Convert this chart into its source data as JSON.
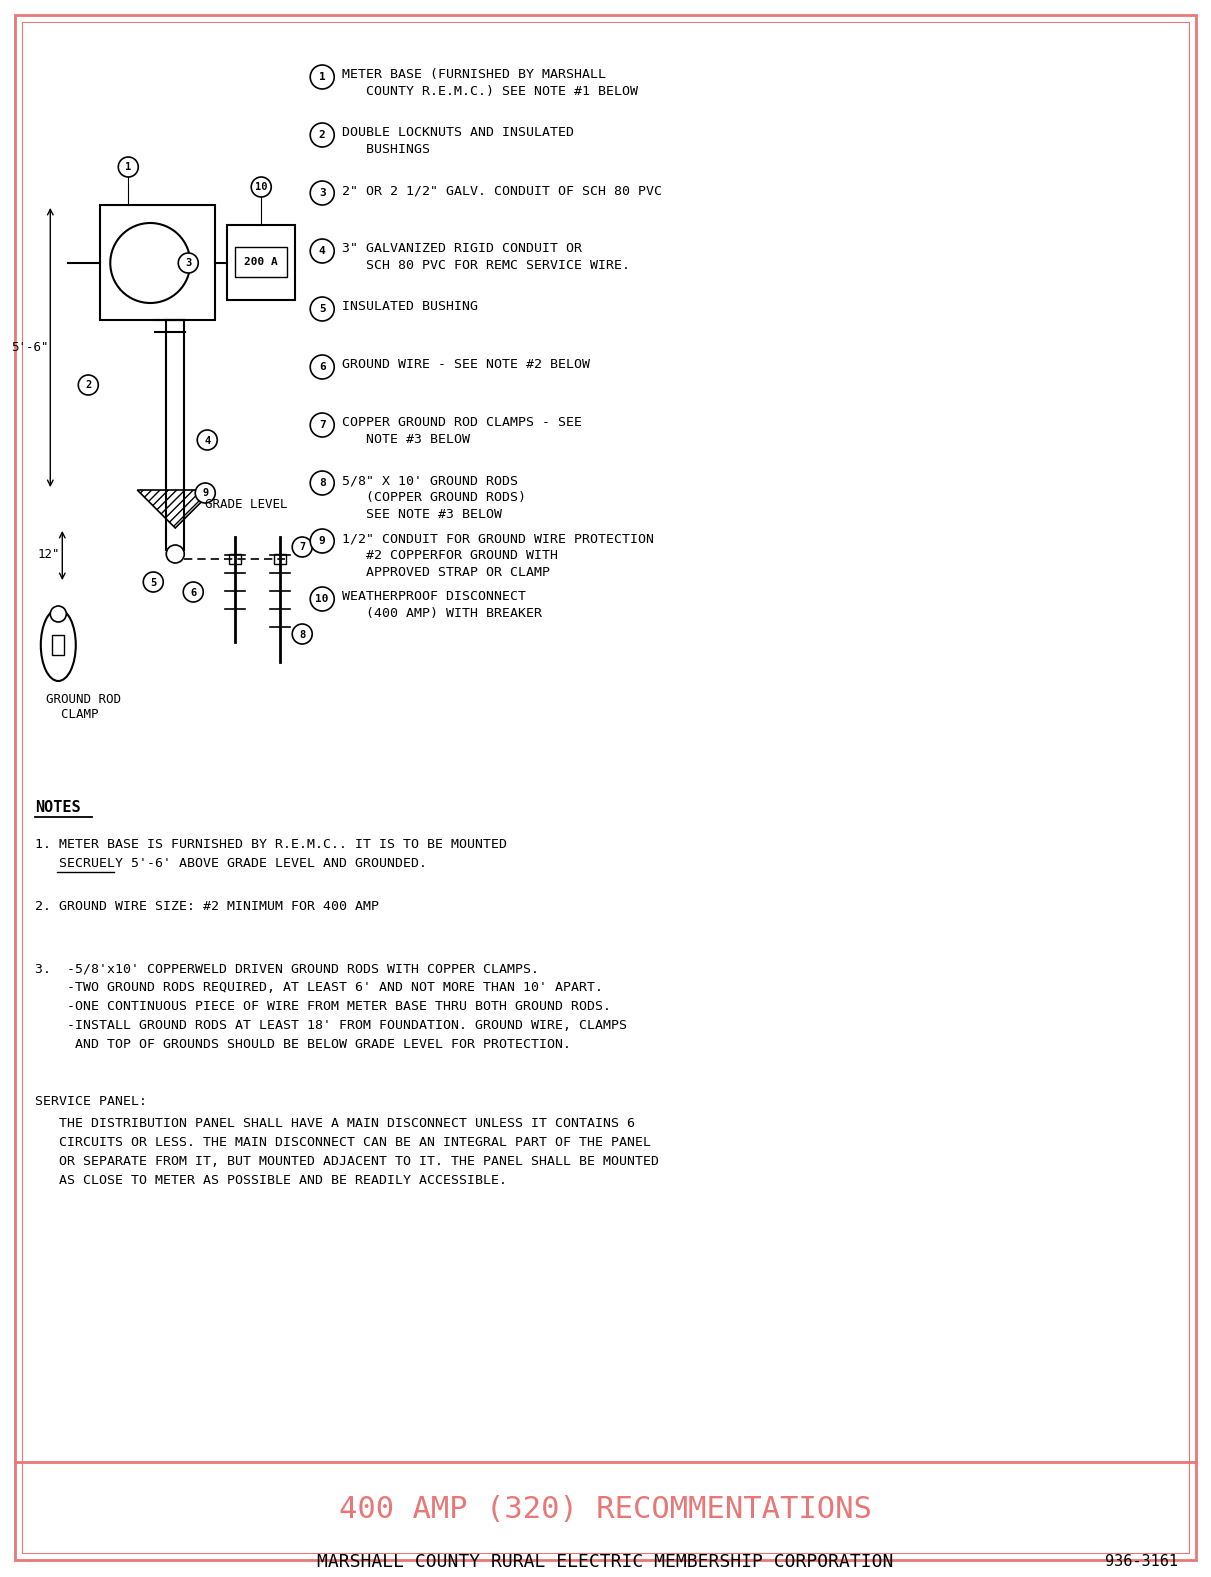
{
  "bg_color": "#ffffff",
  "border_color": "#e87878",
  "title_color": "#e87878",
  "text_color": "#000000",
  "title": "400 AMP (320) RECOMMENTATIONS",
  "subtitle": "MARSHALL COUNTY RURAL ELECTRIC MEMBERSHIP CORPORATION",
  "doc_number": "936-3161",
  "legend_items": [
    {
      "num": "1",
      "text": "METER BASE (FURNISHED BY MARSHALL\n   COUNTY R.E.M.C.) SEE NOTE #1 BELOW"
    },
    {
      "num": "2",
      "text": "DOUBLE LOCKNUTS AND INSULATED\n   BUSHINGS"
    },
    {
      "num": "3",
      "text": "2\" OR 2 1/2\" GALV. CONDUIT OF SCH 80 PVC"
    },
    {
      "num": "4",
      "text": "3\" GALVANIZED RIGID CONDUIT OR\n   SCH 80 PVC FOR REMC SERVICE WIRE."
    },
    {
      "num": "5",
      "text": "INSULATED BUSHING"
    },
    {
      "num": "6",
      "text": "GROUND WIRE - SEE NOTE #2 BELOW"
    },
    {
      "num": "7",
      "text": "COPPER GROUND ROD CLAMPS - SEE\n   NOTE #3 BELOW"
    },
    {
      "num": "8",
      "text": "5/8\" X 10' GROUND RODS\n   (COPPER GROUND RODS)\n   SEE NOTE #3 BELOW"
    },
    {
      "num": "9",
      "text": "1/2\" CONDUIT FOR GROUND WIRE PROTECTION\n   #2 COPPERFOR GROUND WITH\n   APPROVED STRAP OR CLAMP"
    },
    {
      "num": "10",
      "text": "WEATHERPROOF DISCONNECT\n   (400 AMP) WITH BREAKER"
    }
  ],
  "notes_title": "NOTES",
  "note2": "2. GROUND WIRE SIZE: #2 MINIMUM FOR 400 AMP",
  "note3_lines": [
    "3.  -5/8'x10' COPPERWELD DRIVEN GROUND RODS WITH COPPER CLAMPS.",
    "    -TWO GROUND RODS REQUIRED, AT LEAST 6' AND NOT MORE THAN 10' APART.",
    "    -ONE CONTINUOUS PIECE OF WIRE FROM METER BASE THRU BOTH GROUND RODS.",
    "    -INSTALL GROUND RODS AT LEAST 18' FROM FOUNDATION. GROUND WIRE, CLAMPS",
    "     AND TOP OF GROUNDS SHOULD BE BELOW GRADE LEVEL FOR PROTECTION."
  ],
  "service_panel_title": "SERVICE PANEL:",
  "service_panel_lines": [
    "   THE DISTRIBUTION PANEL SHALL HAVE A MAIN DISCONNECT UNLESS IT CONTAINS 6",
    "   CIRCUITS OR LESS. THE MAIN DISCONNECT CAN BE AN INTEGRAL PART OF THE PANEL",
    "   OR SEPARATE FROM IT, BUT MOUNTED ADJACENT TO IT. THE PANEL SHALL BE MOUNTED",
    "   AS CLOSE TO METER AS POSSIBLE AND BE READILY ACCESSIBLE."
  ],
  "dim_56": "5'-6\"",
  "dim_12": "12\"",
  "grade_level": "GRADE LEVEL",
  "ground_rod_clamp": "GROUND ROD\n  CLAMP"
}
